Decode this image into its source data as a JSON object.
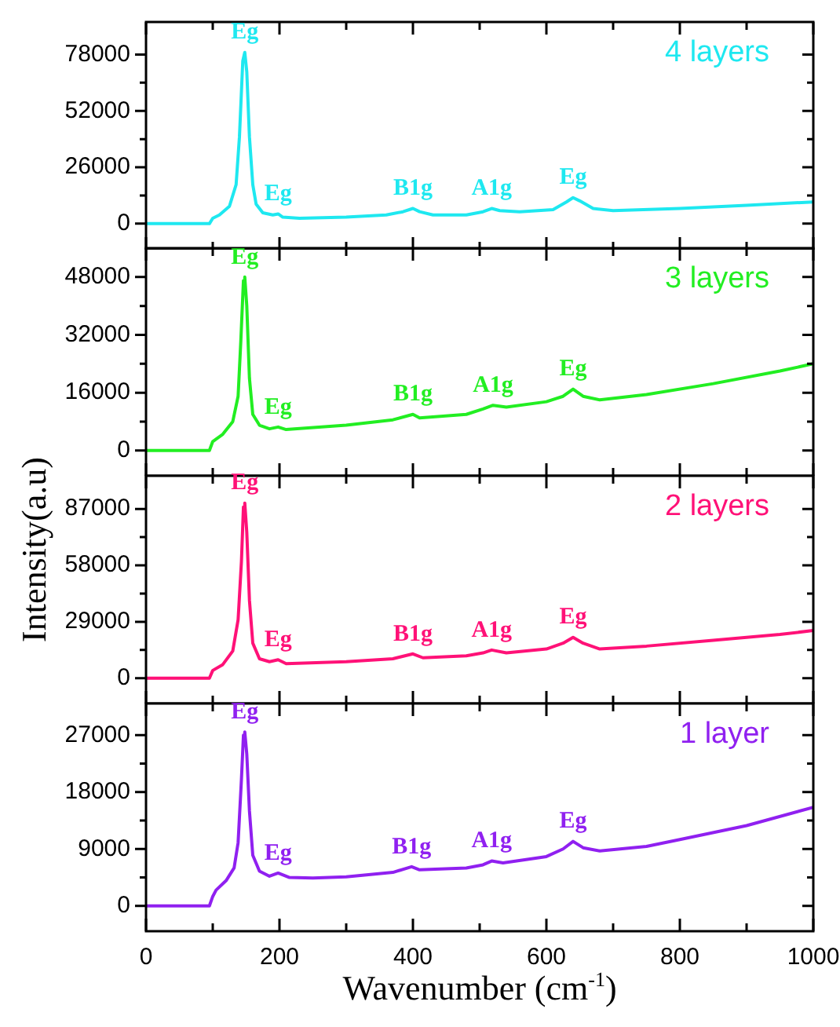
{
  "chart_data": [
    {
      "type": "line",
      "marker": "none",
      "tick_labels": "y",
      "series": [
        {
          "name": "4 layers",
          "color": "#1ee8f0",
          "x": [
            0,
            95,
            100,
            110,
            125,
            135,
            140,
            145,
            148,
            151,
            155,
            160,
            165,
            175,
            190,
            198,
            205,
            230,
            300,
            360,
            385,
            400,
            410,
            430,
            480,
            505,
            518,
            530,
            560,
            610,
            630,
            640,
            650,
            670,
            700,
            800,
            900,
            1000
          ],
          "values": [
            0,
            0,
            2500,
            4000,
            8000,
            18000,
            40000,
            75000,
            79000,
            70000,
            40000,
            18000,
            9000,
            5000,
            4000,
            4500,
            3000,
            2500,
            3000,
            4000,
            5500,
            7000,
            5500,
            4000,
            4000,
            5500,
            7000,
            6000,
            5500,
            6500,
            10000,
            12000,
            10500,
            7000,
            6000,
            7000,
            8500,
            10000
          ]
        }
      ],
      "xlim": [
        0,
        1000
      ],
      "xticks": [
        0,
        {
          "value": 100,
          "label": null
        },
        200,
        {
          "value": 300,
          "label": null
        },
        400,
        {
          "value": 500,
          "label": null
        },
        600,
        {
          "value": 700,
          "label": null
        },
        800,
        {
          "value": 900,
          "label": null
        },
        1000
      ],
      "ylim": [
        -12000,
        93000
      ],
      "yticks": [
        0,
        {
          "value": 13000,
          "label": null
        },
        26000,
        {
          "value": 39000,
          "label": null
        },
        52000,
        {
          "value": 65000,
          "label": null
        },
        78000
      ],
      "annotations": [
        {
          "text": "Eg",
          "x": 148,
          "y": 79000
        },
        {
          "text": "Eg",
          "x": 198,
          "y": 4500
        },
        {
          "text": "B1g",
          "x": 400,
          "y": 7000
        },
        {
          "text": "A1g",
          "x": 518,
          "y": 7000
        },
        {
          "text": "Eg",
          "x": 640,
          "y": 12000
        }
      ]
    },
    {
      "type": "line",
      "marker": "none",
      "tick_labels": "y",
      "ylabel": "Intensity(a.u)",
      "series": [
        {
          "name": "3 layers",
          "color": "#22ee22",
          "x": [
            0,
            95,
            100,
            115,
            130,
            138,
            142,
            146,
            148,
            151,
            155,
            160,
            170,
            185,
            198,
            210,
            300,
            370,
            400,
            410,
            480,
            505,
            520,
            540,
            600,
            625,
            640,
            655,
            680,
            750,
            850,
            950,
            1000
          ],
          "values": [
            0,
            0,
            2500,
            4500,
            8000,
            15000,
            30000,
            47000,
            48000,
            40000,
            20000,
            10000,
            7000,
            6000,
            6500,
            5800,
            7000,
            8500,
            10000,
            9000,
            10000,
            11500,
            12500,
            12000,
            13500,
            15000,
            17000,
            15000,
            14000,
            15500,
            18500,
            22000,
            24000
          ]
        }
      ],
      "xlim": [
        0,
        1000
      ],
      "xticks": [
        0,
        {
          "value": 100,
          "label": null
        },
        200,
        {
          "value": 300,
          "label": null
        },
        400,
        {
          "value": 500,
          "label": null
        },
        600,
        {
          "value": 700,
          "label": null
        },
        800,
        {
          "value": 900,
          "label": null
        },
        1000
      ],
      "ylim": [
        -7000,
        56000
      ],
      "yticks": [
        0,
        {
          "value": 8000,
          "label": null
        },
        16000,
        {
          "value": 24000,
          "label": null
        },
        32000,
        {
          "value": 40000,
          "label": null
        },
        48000
      ],
      "annotations": [
        {
          "text": "Eg",
          "x": 148,
          "y": 48000
        },
        {
          "text": "Eg",
          "x": 198,
          "y": 6500
        },
        {
          "text": "B1g",
          "x": 400,
          "y": 10000
        },
        {
          "text": "A1g",
          "x": 520,
          "y": 12500
        },
        {
          "text": "Eg",
          "x": 640,
          "y": 17000
        }
      ]
    },
    {
      "type": "line",
      "marker": "none",
      "tick_labels": "y",
      "series": [
        {
          "name": "2 layers",
          "color": "#ff1177",
          "x": [
            0,
            95,
            100,
            115,
            130,
            138,
            143,
            146,
            148,
            151,
            155,
            160,
            170,
            185,
            198,
            210,
            300,
            370,
            400,
            415,
            480,
            505,
            518,
            540,
            600,
            625,
            640,
            655,
            680,
            750,
            850,
            950,
            1000
          ],
          "values": [
            0,
            0,
            4000,
            7000,
            14000,
            30000,
            60000,
            88000,
            90000,
            75000,
            40000,
            18000,
            10000,
            8500,
            9500,
            7500,
            8500,
            10000,
            12500,
            10500,
            11500,
            13000,
            14500,
            13000,
            15000,
            18000,
            21000,
            18000,
            15000,
            16500,
            19500,
            22500,
            24500
          ]
        }
      ],
      "xlim": [
        0,
        1000
      ],
      "xticks": [
        0,
        {
          "value": 100,
          "label": null
        },
        200,
        {
          "value": 300,
          "label": null
        },
        400,
        {
          "value": 500,
          "label": null
        },
        600,
        {
          "value": 700,
          "label": null
        },
        800,
        {
          "value": 900,
          "label": null
        },
        1000
      ],
      "ylim": [
        -13000,
        104000
      ],
      "yticks": [
        0,
        {
          "value": 14500,
          "label": null
        },
        29000,
        {
          "value": 43500,
          "label": null
        },
        58000,
        {
          "value": 72500,
          "label": null
        },
        87000
      ],
      "annotations": [
        {
          "text": "Eg",
          "x": 148,
          "y": 90000
        },
        {
          "text": "Eg",
          "x": 198,
          "y": 9500
        },
        {
          "text": "B1g",
          "x": 400,
          "y": 12500
        },
        {
          "text": "A1g",
          "x": 518,
          "y": 14500
        },
        {
          "text": "Eg",
          "x": 640,
          "y": 21000
        }
      ]
    },
    {
      "type": "line",
      "marker": "none",
      "xlabel": "Wavenumber (cm$^{-1}$)",
      "series": [
        {
          "name": "1 layer",
          "color": "#9020f0",
          "x": [
            0,
            95,
            100,
            105,
            120,
            132,
            138,
            143,
            146,
            148,
            151,
            155,
            160,
            170,
            185,
            198,
            215,
            250,
            300,
            370,
            398,
            410,
            480,
            505,
            518,
            535,
            600,
            625,
            640,
            655,
            680,
            750,
            800,
            900,
            1000
          ],
          "values": [
            0,
            0,
            1500,
            2500,
            4000,
            6000,
            10000,
            20000,
            27000,
            27500,
            24000,
            15000,
            8000,
            5500,
            4700,
            5200,
            4500,
            4400,
            4600,
            5300,
            6200,
            5700,
            6000,
            6500,
            7100,
            6800,
            7800,
            9000,
            10200,
            9200,
            8700,
            9400,
            10500,
            12700,
            15600
          ]
        }
      ],
      "xlim": [
        0,
        1000
      ],
      "xticks": [
        0,
        {
          "value": 100,
          "label": null
        },
        200,
        {
          "value": 300,
          "label": null
        },
        400,
        {
          "value": 500,
          "label": null
        },
        600,
        {
          "value": 700,
          "label": null
        },
        800,
        {
          "value": 900,
          "label": null
        },
        1000
      ],
      "ylim": [
        -4000,
        32000
      ],
      "yticks": [
        0,
        {
          "value": 4500,
          "label": null
        },
        9000,
        {
          "value": 13500,
          "label": null
        },
        18000,
        {
          "value": 22500,
          "label": null
        },
        27000
      ],
      "annotations": [
        {
          "text": "Eg",
          "x": 148,
          "y": 27500
        },
        {
          "text": "Eg",
          "x": 198,
          "y": 5200
        },
        {
          "text": "B1g",
          "x": 398,
          "y": 6200
        },
        {
          "text": "A1g",
          "x": 518,
          "y": 7100
        },
        {
          "text": "Eg",
          "x": 640,
          "y": 10200
        }
      ]
    }
  ]
}
